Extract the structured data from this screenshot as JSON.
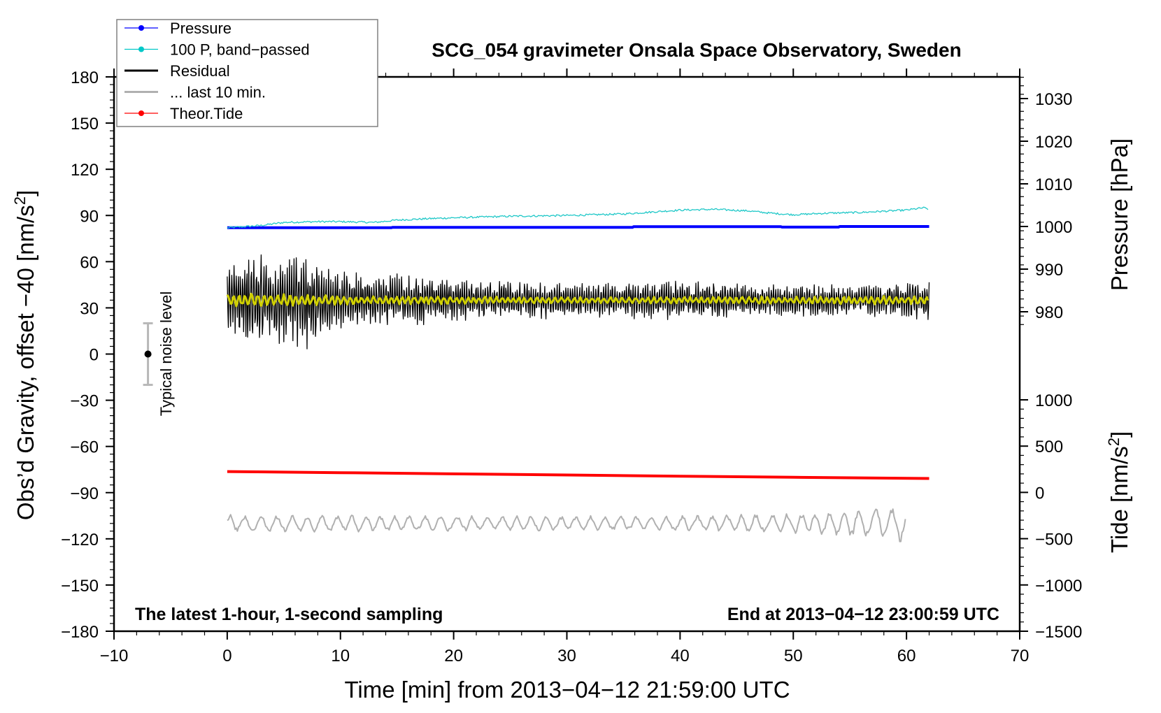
{
  "chart_data": {
    "type": "line",
    "title": "SCG_054 gravimeter Onsala Space Observatory, Sweden",
    "xlabel": "Time [min] from 2013−04−12 21:59:00 UTC",
    "ylabel": "Obs’d Gravity, offset −40 [nm/s",
    "ylabel_sup": "2",
    "ylabel_end": "]",
    "y2label_pressure": "Pressure [hPa]",
    "y2label_tide": "Tide [nm/s",
    "y2label_tide_sup": "2",
    "y2label_tide_end": "]",
    "xlim": [
      -10,
      70
    ],
    "ylim": [
      -180,
      180
    ],
    "pressure_lim": [
      980,
      1030
    ],
    "tide_lim": [
      -1500,
      1000
    ],
    "x_ticks": [
      "−10",
      "0",
      "10",
      "20",
      "30",
      "40",
      "50",
      "60",
      "70"
    ],
    "y_ticks": [
      "180",
      "150",
      "120",
      "90",
      "60",
      "30",
      "0",
      "−30",
      "−60",
      "−90",
      "−120",
      "−150",
      "−180"
    ],
    "pressure_ticks": [
      "1030",
      "1020",
      "1010",
      "1000",
      "990",
      "980"
    ],
    "tide_ticks": [
      "1000",
      "500",
      "0",
      "−500",
      "−1000",
      "−1500"
    ],
    "annotation_left": "The latest 1-hour, 1-second sampling",
    "annotation_right": "End at 2013−04−12 23:00:59 UTC",
    "noise_label": "Typical noise level",
    "noise_bar": {
      "x": -7,
      "center": 0,
      "half_range": 20
    },
    "legend": [
      {
        "label": "Pressure",
        "color": "#0000ff",
        "marker": true
      },
      {
        "label": "100 P, band−passed",
        "color": "#00c8c8",
        "marker": true
      },
      {
        "label": "Residual",
        "color": "#000000",
        "marker": false
      },
      {
        "label": "... last 10 min.",
        "color": "#b0b0b0",
        "marker": false
      },
      {
        "label": "Theor.Tide",
        "color": "#ff0000",
        "marker": true
      }
    ],
    "series": [
      {
        "name": "Pressure",
        "axis": "pressure_hPa",
        "color": "#0000ff",
        "x": [
          0,
          14.5,
          14.6,
          35.8,
          35.9,
          48.9,
          49.0,
          54.0,
          54.1,
          62
        ],
        "y": [
          999.7,
          999.7,
          999.8,
          999.8,
          999.95,
          999.95,
          999.85,
          999.85,
          1000.0,
          1000.0
        ]
      },
      {
        "name": "100 P, band-passed",
        "axis": "gravity",
        "color": "#20c8c8",
        "x": [
          0,
          3,
          5,
          8,
          10,
          13,
          15,
          18,
          20,
          25,
          30,
          35,
          38,
          40,
          43,
          46,
          48,
          50,
          53,
          56,
          60,
          61.5,
          62
        ],
        "y": [
          82,
          83.5,
          85.5,
          86,
          86,
          85.5,
          87,
          88,
          88.5,
          89.5,
          90,
          91,
          92.5,
          93.5,
          94,
          93,
          91.5,
          90.5,
          91.5,
          92,
          93.5,
          95,
          94
        ]
      },
      {
        "name": "Residual",
        "axis": "gravity",
        "color": "#000000",
        "mean": 35,
        "envelope_x": [
          0,
          2,
          5,
          7,
          9,
          12,
          15,
          20,
          25,
          30,
          35,
          40,
          45,
          50,
          55,
          60,
          62
        ],
        "envelope_amp": [
          22,
          32,
          30,
          34,
          22,
          18,
          18,
          15,
          13,
          12,
          12,
          13,
          11,
          11,
          10,
          12,
          15
        ]
      },
      {
        "name": "Residual smoothed",
        "axis": "gravity",
        "color": "#d0d000",
        "mean": 35,
        "envelope_x": [
          0,
          10,
          30,
          62
        ],
        "envelope_amp": [
          5,
          3,
          2,
          3
        ]
      },
      {
        "name": "... last 10 min.",
        "axis": "gravity",
        "color": "#b0b0b0",
        "mean": -110,
        "envelope_x": [
          0,
          20,
          40,
          50,
          55,
          59,
          60
        ],
        "envelope_amp": [
          6,
          5,
          5,
          7,
          9,
          11,
          14
        ]
      },
      {
        "name": "Theor.Tide",
        "axis": "tide_nm_s2",
        "color": "#ff0000",
        "x": [
          0,
          10,
          20,
          30,
          40,
          50,
          62
        ],
        "y": [
          225,
          213,
          200,
          188,
          175,
          163,
          150
        ]
      }
    ]
  }
}
